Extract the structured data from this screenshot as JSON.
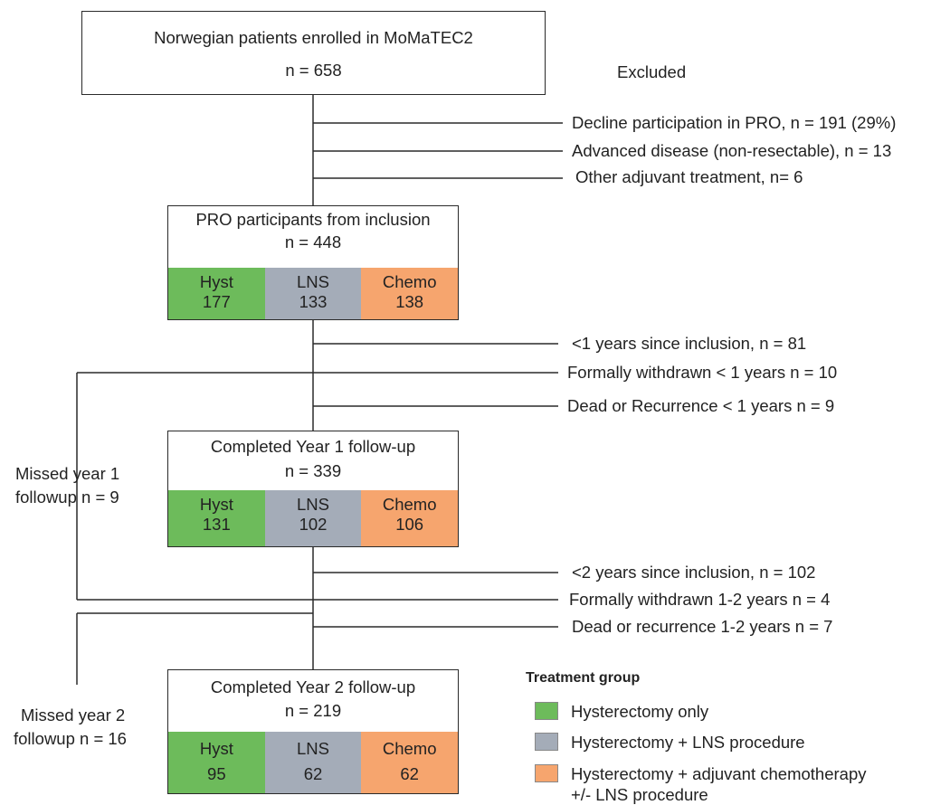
{
  "colors": {
    "hyst": "#6dbb5b",
    "lns": "#a4acb8",
    "chemo": "#f6a56e",
    "line": "#2a2a2a"
  },
  "enrolled": {
    "title": "Norwegian patients enrolled in MoMaTEC2",
    "n": "n = 658"
  },
  "excluded_label": "Excluded",
  "exclusions_1": [
    "Decline participation in PRO, n = 191 (29%)",
    "Advanced disease (non-resectable), n = 13",
    "Other adjuvant treatment, n= 6"
  ],
  "pro": {
    "title": "PRO participants from inclusion",
    "n": "n = 448",
    "groups": [
      {
        "name": "Hyst",
        "n": "177"
      },
      {
        "name": "LNS",
        "n": "133"
      },
      {
        "name": "Chemo",
        "n": "138"
      }
    ]
  },
  "exclusions_2": [
    "<1 years since inclusion, n = 81",
    "Formally withdrawn < 1 years n = 10",
    "Dead or Recurrence < 1 years n = 9"
  ],
  "missed_1": {
    "line1": "Missed year 1",
    "line2": "followup n = 9"
  },
  "year1": {
    "title": "Completed Year 1 follow-up",
    "n": "n = 339",
    "groups": [
      {
        "name": "Hyst",
        "n": "131"
      },
      {
        "name": "LNS",
        "n": "102"
      },
      {
        "name": "Chemo",
        "n": "106"
      }
    ]
  },
  "exclusions_3": [
    "<2 years since inclusion, n = 102",
    "Formally withdrawn 1-2 years n = 4",
    "Dead or recurrence 1-2 years n = 7"
  ],
  "missed_2": {
    "line1": "Missed year 2",
    "line2": "followup n = 16"
  },
  "year2": {
    "title": "Completed Year 2 follow-up",
    "n": "n = 219",
    "groups": [
      {
        "name": "Hyst",
        "n": "95"
      },
      {
        "name": "LNS",
        "n": "62"
      },
      {
        "name": "Chemo",
        "n": "62"
      }
    ]
  },
  "legend": {
    "title": "Treatment group",
    "items": [
      {
        "label": "Hysterectomy only"
      },
      {
        "label": "Hysterectomy + LNS procedure"
      },
      {
        "label": "Hysterectomy + adjuvant chemotherapy",
        "label2": "+/- LNS procedure"
      }
    ]
  }
}
